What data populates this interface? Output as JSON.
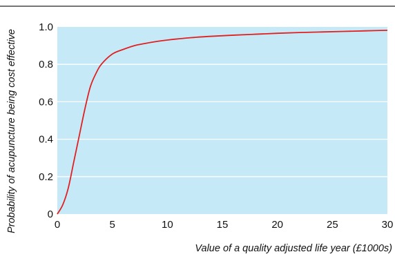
{
  "chart_data": {
    "type": "line",
    "title": "",
    "xlabel": "Value of a quality adjusted life year (£1000s)",
    "ylabel": "Probability of acupuncture being cost effective",
    "xlim": [
      0,
      30
    ],
    "ylim": [
      0,
      1
    ],
    "x_ticks": [
      0,
      5,
      10,
      15,
      20,
      25,
      30
    ],
    "y_ticks": [
      0,
      0.2,
      0.4,
      0.6,
      0.8,
      1.0
    ],
    "x_tick_labels": [
      "0",
      "5",
      "10",
      "15",
      "20",
      "25",
      "30"
    ],
    "y_tick_labels": [
      "0",
      "0.2",
      "0.4",
      "0.6",
      "0.8",
      "1.0"
    ],
    "grid": "horizontal",
    "legend": "none",
    "colors": {
      "plot_background": "#c6e9f8",
      "gridline": "#ffffff",
      "line": "#e02020",
      "rule": "#222222"
    },
    "series": [
      {
        "x": [
          0,
          0.5,
          1,
          1.5,
          2,
          2.5,
          3,
          3.5,
          4,
          5,
          6,
          7,
          8,
          9,
          10,
          12,
          14,
          16,
          18,
          20,
          22,
          24,
          26,
          28,
          30
        ],
        "y": [
          0,
          0.05,
          0.14,
          0.28,
          0.42,
          0.56,
          0.68,
          0.75,
          0.8,
          0.855,
          0.88,
          0.9,
          0.912,
          0.922,
          0.93,
          0.942,
          0.95,
          0.956,
          0.961,
          0.966,
          0.97,
          0.973,
          0.976,
          0.979,
          0.982
        ]
      }
    ]
  }
}
